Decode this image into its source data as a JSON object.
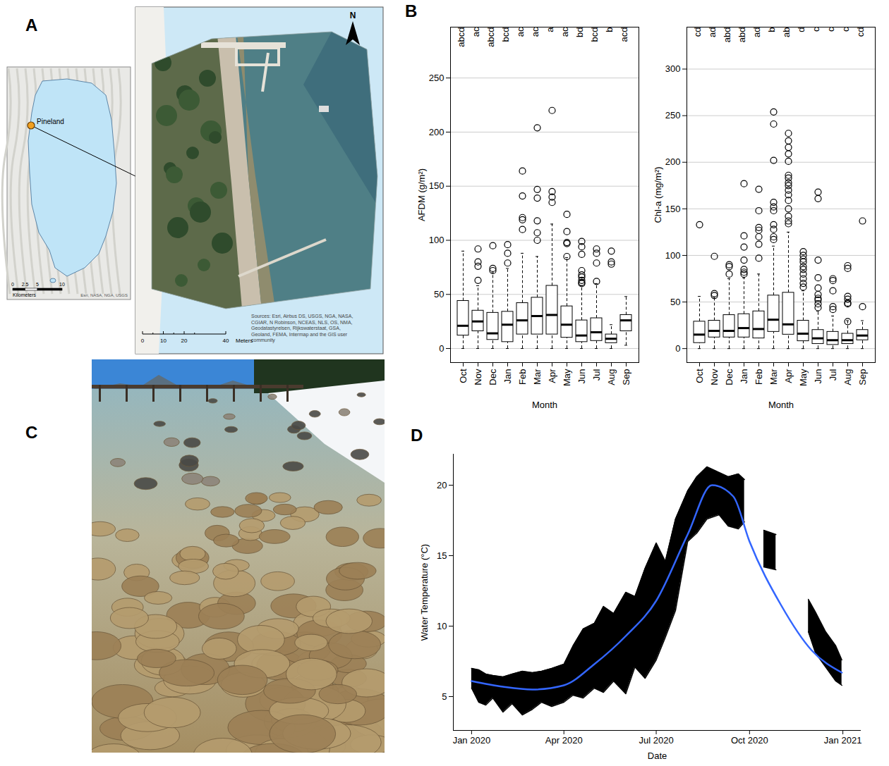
{
  "panel_labels": [
    "A",
    "B",
    "C",
    "D"
  ],
  "map": {
    "inset": {
      "place_label": "Pineland",
      "scale_ticks": [
        0,
        2.5,
        5,
        10
      ],
      "scale_unit": "Kilometers",
      "attribution": "Esri, NASA, NGA, USGS"
    },
    "detail": {
      "north_label": "N",
      "scale_ticks": [
        0,
        10,
        20,
        40
      ],
      "scale_unit": "Meters",
      "sources": "Sources: Esri, Airbus DS, USGS, NGA, NASA, CGIAR, N Robinson, NCEAS, NLS, OS, NMA, Geodatastyrelsen, Rijkswaterstaat, GSA, Geoland, FEMA, Intermap and the GIS user community"
    }
  },
  "chart_data": [
    {
      "type": "box",
      "x_label": "Month",
      "y_label": "AFDM (g/m²)",
      "categories": [
        "Oct",
        "Nov",
        "Dec",
        "Jan",
        "Feb",
        "Mar",
        "Apr",
        "May",
        "Jun",
        "Jul",
        "Aug",
        "Sep"
      ],
      "whisker_low": [
        0,
        0,
        0,
        0,
        0,
        0,
        0,
        0,
        0,
        0,
        0,
        3
      ],
      "q1": [
        12,
        16,
        8,
        6,
        13,
        13,
        13,
        10,
        6,
        7,
        5,
        16
      ],
      "median": [
        21,
        25,
        14,
        22,
        26,
        30,
        31,
        22,
        12,
        15,
        9,
        26
      ],
      "q3": [
        44,
        35,
        33,
        34,
        42,
        47,
        58,
        39,
        26,
        28,
        13,
        31
      ],
      "whisker_high": [
        90,
        58,
        70,
        74,
        88,
        85,
        115,
        84,
        58,
        60,
        22,
        48
      ],
      "outliers": [
        [],
        [
          92,
          80,
          76,
          63
        ],
        [
          95,
          74,
          72
        ],
        [
          96,
          88,
          79
        ],
        [
          164,
          141,
          121,
          119,
          110
        ],
        [
          204,
          147,
          139,
          118,
          107,
          100
        ],
        [
          220,
          145,
          140,
          135
        ],
        [
          124,
          108,
          98,
          97,
          85
        ],
        [
          99,
          94,
          87,
          72,
          68,
          66,
          63,
          61,
          60
        ],
        [
          92,
          88,
          79,
          62
        ],
        [
          90,
          80,
          78
        ],
        []
      ],
      "letters": [
        "abcd",
        "ac",
        "abcd",
        "bcd",
        "ac",
        "ac",
        "a",
        "ac",
        "bd",
        "bcd",
        "b",
        "acd"
      ],
      "ylim": [
        -13,
        297
      ],
      "yticks": [
        0,
        50,
        100,
        150,
        200,
        250
      ],
      "grid": true
    },
    {
      "type": "box",
      "x_label": "Month",
      "y_label": "Chl-a (mg/m²)",
      "categories": [
        "Oct",
        "Nov",
        "Dec",
        "Jan",
        "Feb",
        "Mar",
        "Apr",
        "May",
        "Jun",
        "Jul",
        "Aug",
        "Sep"
      ],
      "whisker_low": [
        0,
        0,
        0,
        0,
        0,
        0,
        0,
        0,
        0,
        0,
        0,
        0
      ],
      "q1": [
        6,
        12,
        12,
        12,
        11,
        18,
        15,
        8,
        5,
        4,
        5,
        9
      ],
      "median": [
        15,
        19,
        19,
        22,
        21,
        31,
        26,
        16,
        11,
        9,
        9,
        14
      ],
      "q3": [
        29,
        30,
        36,
        37,
        40,
        57,
        60,
        30,
        20,
        18,
        16,
        20
      ],
      "whisker_high": [
        56,
        55,
        75,
        76,
        80,
        110,
        125,
        62,
        40,
        35,
        30,
        30
      ],
      "outliers": [
        [
          133
        ],
        [
          99,
          59,
          57
        ],
        [
          90,
          88,
          80
        ],
        [
          177,
          121,
          109,
          95,
          85,
          82,
          80
        ],
        [
          171,
          148,
          130,
          127,
          120,
          112,
          97
        ],
        [
          254,
          241,
          202,
          157,
          152,
          148,
          133,
          128,
          120,
          117
        ],
        [
          231,
          223,
          216,
          209,
          201,
          186,
          183,
          178,
          175,
          170,
          165,
          159,
          150,
          142,
          137,
          134
        ],
        [
          104,
          100,
          96,
          93,
          88,
          85,
          80,
          75,
          70,
          66
        ],
        [
          168,
          161,
          95,
          76,
          65,
          58,
          54,
          52,
          48,
          44
        ],
        [
          75,
          73,
          62,
          45,
          42
        ],
        [
          89,
          86,
          56,
          53,
          49,
          48,
          29
        ],
        [
          137,
          45
        ]
      ],
      "letters": [
        "cd",
        "ad",
        "abd",
        "abd",
        "ad",
        "b",
        "ab",
        "d",
        "c",
        "c",
        "c",
        "cd"
      ],
      "ylim": [
        -15,
        345
      ],
      "yticks": [
        0,
        50,
        100,
        150,
        200,
        250,
        300
      ],
      "grid": true
    },
    {
      "type": "line",
      "x_label": "Date",
      "y_label": "Water Temperature (°C)",
      "xlim": [
        "2019-12-14",
        "2021-01-19"
      ],
      "xticks": [
        {
          "value": "2020-01-01",
          "label": "Jan 2020"
        },
        {
          "value": "2020-04-01",
          "label": "Apr 2020"
        },
        {
          "value": "2020-07-01",
          "label": "Jul 2020"
        },
        {
          "value": "2020-10-01",
          "label": "Oct 2020"
        },
        {
          "value": "2021-01-01",
          "label": "Jan 2021"
        }
      ],
      "ylim": [
        2.6,
        22.2
      ],
      "yticks": [
        5,
        10,
        15,
        20
      ],
      "grid": false,
      "band": {
        "color": "#000000",
        "x": [
          "2020-01-01",
          "2020-01-08",
          "2020-01-15",
          "2020-01-22",
          "2020-02-01",
          "2020-02-10",
          "2020-02-20",
          "2020-03-01",
          "2020-03-10",
          "2020-03-20",
          "2020-04-01",
          "2020-04-10",
          "2020-04-20",
          "2020-05-01",
          "2020-05-10",
          "2020-05-20",
          "2020-06-01",
          "2020-06-10",
          "2020-06-20",
          "2020-07-01",
          "2020-07-10",
          "2020-07-20",
          "2020-08-01",
          "2020-08-10",
          "2020-08-20",
          "2020-09-01",
          "2020-09-10",
          "2020-09-20",
          "2020-09-26",
          "2020-10-05",
          "2020-10-15",
          "2020-10-27",
          "2020-11-10",
          "2020-11-28",
          "2020-12-05",
          "2020-12-15",
          "2020-12-25",
          "2020-12-31"
        ],
        "low": [
          5.6,
          4.6,
          4.4,
          4.9,
          3.9,
          4.5,
          3.7,
          4.1,
          4.6,
          4.3,
          4.6,
          5.1,
          4.9,
          5.6,
          5.3,
          6.1,
          5.2,
          7.1,
          6.3,
          7.6,
          9.2,
          11.1,
          16.0,
          16.6,
          17.6,
          17.9,
          17.1,
          16.9,
          17.4,
          null,
          14.2,
          14.0,
          null,
          9.6,
          8.1,
          7.1,
          6.1,
          5.8
        ],
        "high": [
          7.0,
          6.9,
          6.6,
          6.5,
          6.4,
          6.6,
          6.8,
          6.7,
          6.8,
          7.0,
          7.3,
          8.6,
          9.8,
          10.2,
          11.4,
          10.9,
          12.4,
          12.1,
          14.1,
          15.9,
          14.6,
          17.6,
          19.6,
          20.6,
          21.3,
          20.9,
          20.6,
          20.8,
          20.4,
          null,
          16.8,
          16.5,
          null,
          11.9,
          11.0,
          9.6,
          8.6,
          7.6
        ]
      },
      "trend": {
        "color": "#3366ff",
        "x": [
          "2020-01-01",
          "2020-02-01",
          "2020-03-01",
          "2020-04-01",
          "2020-05-01",
          "2020-06-01",
          "2020-07-01",
          "2020-08-01",
          "2020-08-25",
          "2020-09-15",
          "2020-10-01",
          "2020-11-01",
          "2020-12-01",
          "2020-12-31"
        ],
        "values": [
          6.1,
          5.7,
          5.5,
          5.8,
          7.3,
          9.3,
          11.8,
          16.5,
          20.0,
          19.2,
          16.0,
          11.5,
          8.3,
          6.7
        ]
      }
    }
  ]
}
